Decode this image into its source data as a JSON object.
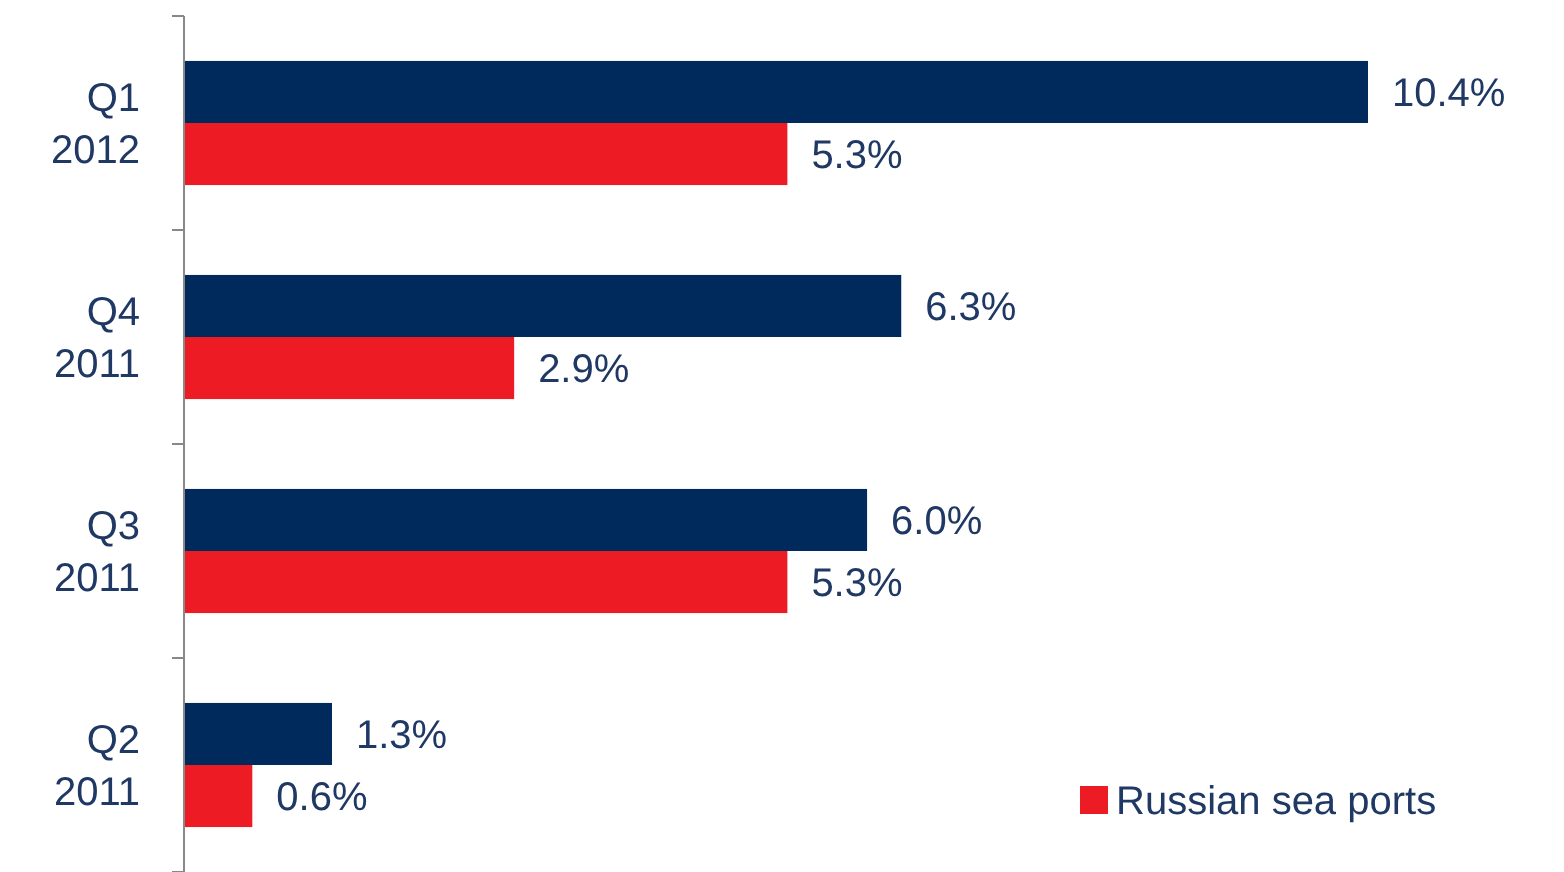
{
  "chart_data": {
    "type": "bar",
    "orientation": "horizontal",
    "categories": [
      "Q1\n2012",
      "Q4\n2011",
      "Q3\n2011",
      "Q2\n2011"
    ],
    "series": [
      {
        "color": "#002a5c",
        "values": [
          10.4,
          6.3,
          6.0,
          1.3
        ],
        "value_labels": [
          "10.4%",
          "6.3%",
          "6.0%",
          "1.3%"
        ]
      },
      {
        "name": "Russian sea ports",
        "color": "#ed1c24",
        "values": [
          5.3,
          2.9,
          5.3,
          0.6
        ],
        "value_labels": [
          "5.3%",
          "2.9%",
          "5.3%",
          "0.6%"
        ]
      }
    ],
    "legend": "bottom right",
    "grid": false
  }
}
